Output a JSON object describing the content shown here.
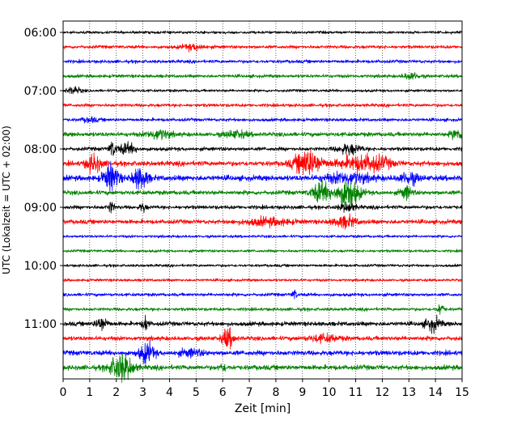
{
  "chart_data": {
    "type": "line",
    "title": "",
    "xlabel": "Zeit  [min]",
    "ylabel": "UTC (Lokalzeit = UTC + 02:00)",
    "xlim": [
      0,
      15
    ],
    "x_ticks": [
      0,
      1,
      2,
      3,
      4,
      5,
      6,
      7,
      8,
      9,
      10,
      11,
      12,
      13,
      14,
      15
    ],
    "y_tick_labels": [
      "06:00",
      "07:00",
      "08:00",
      "09:00",
      "10:00",
      "11:00"
    ],
    "y_tick_rows": [
      0,
      4,
      8,
      12,
      16,
      20
    ],
    "grid": "vertical dotted",
    "color_cycle": [
      "#000000",
      "#ff0000",
      "#0000ff",
      "#008000"
    ],
    "traces": [
      {
        "label": "06:00",
        "color": "#000000",
        "noise": 0.25,
        "events": []
      },
      {
        "label": "06:15",
        "color": "#ff0000",
        "noise": 0.3,
        "events": [
          {
            "t": 4.9,
            "a": 0.5,
            "w": 0.3
          }
        ]
      },
      {
        "label": "06:30",
        "color": "#0000ff",
        "noise": 0.3,
        "events": []
      },
      {
        "label": "06:45",
        "color": "#008000",
        "noise": 0.3,
        "events": [
          {
            "t": 13.1,
            "a": 0.6,
            "w": 0.2
          }
        ]
      },
      {
        "label": "07:00",
        "color": "#000000",
        "noise": 0.25,
        "events": [
          {
            "t": 0.4,
            "a": 0.6,
            "w": 0.2
          }
        ]
      },
      {
        "label": "07:15",
        "color": "#ff0000",
        "noise": 0.3,
        "events": []
      },
      {
        "label": "07:30",
        "color": "#0000ff",
        "noise": 0.3,
        "events": [
          {
            "t": 1.0,
            "a": 0.4,
            "w": 0.2
          }
        ]
      },
      {
        "label": "07:45",
        "color": "#008000",
        "noise": 0.4,
        "events": [
          {
            "t": 3.6,
            "a": 0.8,
            "w": 0.3
          },
          {
            "t": 6.5,
            "a": 0.6,
            "w": 0.3
          },
          {
            "t": 14.8,
            "a": 0.9,
            "w": 0.15
          }
        ]
      },
      {
        "label": "08:00",
        "color": "#000000",
        "noise": 0.35,
        "events": [
          {
            "t": 1.85,
            "a": 1.4,
            "w": 0.08
          },
          {
            "t": 2.4,
            "a": 0.9,
            "w": 0.25
          },
          {
            "t": 10.75,
            "a": 0.9,
            "w": 0.3
          }
        ]
      },
      {
        "label": "08:15",
        "color": "#ff0000",
        "noise": 0.45,
        "events": [
          {
            "t": 1.15,
            "a": 1.6,
            "w": 0.2
          },
          {
            "t": 9.2,
            "a": 2.5,
            "w": 0.35
          },
          {
            "t": 11.0,
            "a": 1.1,
            "w": 0.5
          },
          {
            "t": 11.8,
            "a": 1.0,
            "w": 0.4
          }
        ]
      },
      {
        "label": "08:30",
        "color": "#0000ff",
        "noise": 0.5,
        "events": [
          {
            "t": 1.8,
            "a": 2.5,
            "w": 0.2
          },
          {
            "t": 2.9,
            "a": 2.0,
            "w": 0.2
          },
          {
            "t": 10.7,
            "a": 0.9,
            "w": 0.6
          },
          {
            "t": 13.0,
            "a": 1.0,
            "w": 0.25
          }
        ]
      },
      {
        "label": "08:45",
        "color": "#008000",
        "noise": 0.4,
        "events": [
          {
            "t": 9.7,
            "a": 1.8,
            "w": 0.25
          },
          {
            "t": 10.7,
            "a": 2.8,
            "w": 0.3
          },
          {
            "t": 12.9,
            "a": 1.2,
            "w": 0.15
          }
        ]
      },
      {
        "label": "09:00",
        "color": "#000000",
        "noise": 0.35,
        "events": [
          {
            "t": 1.8,
            "a": 1.0,
            "w": 0.08
          },
          {
            "t": 3.0,
            "a": 0.8,
            "w": 0.08
          },
          {
            "t": 10.7,
            "a": 0.8,
            "w": 0.2
          }
        ]
      },
      {
        "label": "09:15",
        "color": "#ff0000",
        "noise": 0.4,
        "events": [
          {
            "t": 7.7,
            "a": 0.6,
            "w": 0.6
          },
          {
            "t": 10.6,
            "a": 1.0,
            "w": 0.3
          }
        ]
      },
      {
        "label": "09:30",
        "color": "#0000ff",
        "noise": 0.25,
        "events": []
      },
      {
        "label": "09:45",
        "color": "#008000",
        "noise": 0.25,
        "events": []
      },
      {
        "label": "10:00",
        "color": "#000000",
        "noise": 0.25,
        "events": []
      },
      {
        "label": "10:15",
        "color": "#ff0000",
        "noise": 0.25,
        "events": []
      },
      {
        "label": "10:30",
        "color": "#0000ff",
        "noise": 0.3,
        "events": [
          {
            "t": 8.7,
            "a": 0.9,
            "w": 0.06
          }
        ]
      },
      {
        "label": "10:45",
        "color": "#008000",
        "noise": 0.3,
        "events": [
          {
            "t": 14.2,
            "a": 1.1,
            "w": 0.08
          }
        ]
      },
      {
        "label": "11:00",
        "color": "#000000",
        "noise": 0.4,
        "events": [
          {
            "t": 1.45,
            "a": 1.2,
            "w": 0.15
          },
          {
            "t": 3.1,
            "a": 1.4,
            "w": 0.08
          },
          {
            "t": 13.9,
            "a": 1.2,
            "w": 0.2
          }
        ]
      },
      {
        "label": "11:15",
        "color": "#ff0000",
        "noise": 0.4,
        "events": [
          {
            "t": 6.2,
            "a": 1.8,
            "w": 0.15
          },
          {
            "t": 9.8,
            "a": 0.6,
            "w": 0.4
          }
        ]
      },
      {
        "label": "11:30",
        "color": "#0000ff",
        "noise": 0.45,
        "events": [
          {
            "t": 3.15,
            "a": 1.8,
            "w": 0.2
          },
          {
            "t": 4.8,
            "a": 0.6,
            "w": 0.3
          }
        ]
      },
      {
        "label": "11:45",
        "color": "#008000",
        "noise": 0.45,
        "events": [
          {
            "t": 2.2,
            "a": 2.5,
            "w": 0.3
          },
          {
            "t": 6.0,
            "a": 0.6,
            "w": 0.1
          }
        ]
      }
    ]
  }
}
